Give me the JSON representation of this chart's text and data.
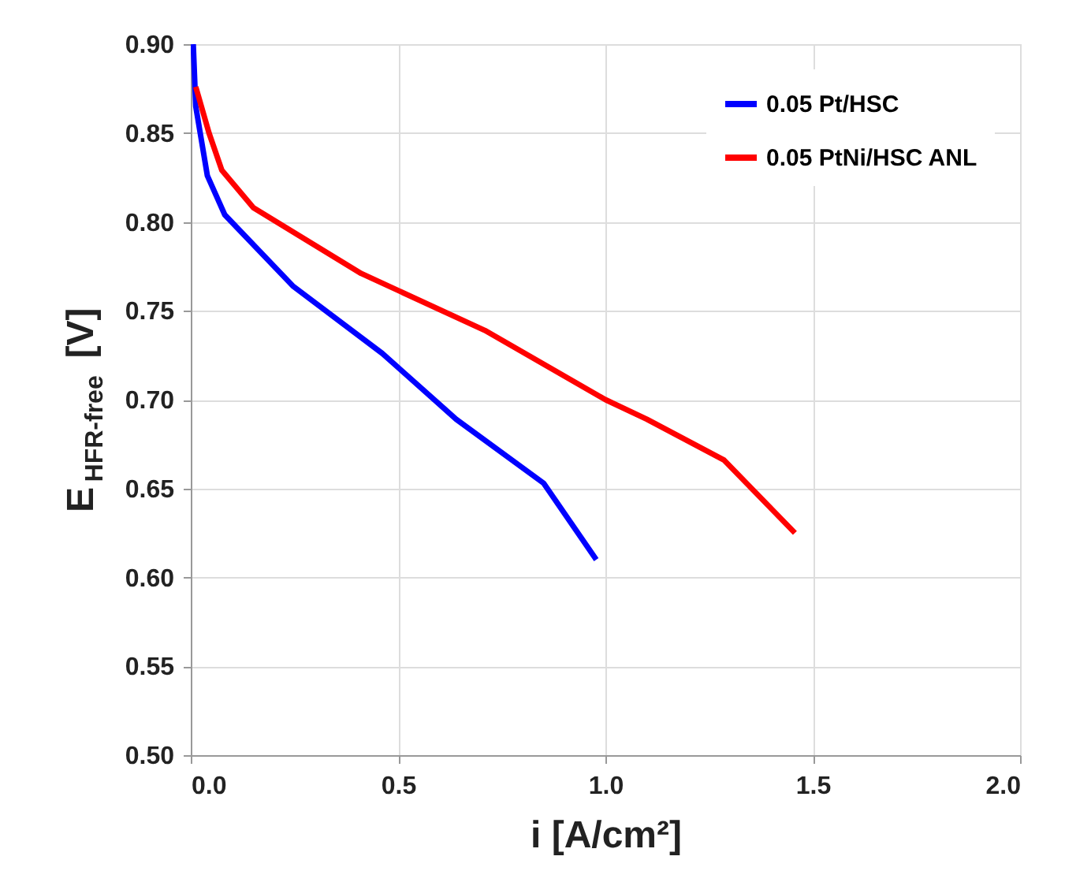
{
  "chart_data": {
    "type": "line",
    "xlabel": "i [A/cm²]",
    "ylabel": "E$_{HFR-free}$ [V]",
    "xlim": [
      0,
      2
    ],
    "xticks": [
      {
        "value": 0,
        "label": "0.0"
      },
      {
        "value": 0.5,
        "label": "0.5"
      },
      {
        "value": 1,
        "label": "1.0"
      },
      {
        "value": 1.5,
        "label": "1.5"
      },
      {
        "value": 2,
        "label": "2.0"
      }
    ],
    "ylim": [
      0.5,
      0.9
    ],
    "yticks": [
      {
        "value": 0.5,
        "label": "0.50"
      },
      {
        "value": 0.55,
        "label": "0.55"
      },
      {
        "value": 0.6,
        "label": "0.60"
      },
      {
        "value": 0.65,
        "label": "0.65"
      },
      {
        "value": 0.7,
        "label": "0.70"
      },
      {
        "value": 0.75,
        "label": "0.75"
      },
      {
        "value": 0.8,
        "label": "0.80"
      },
      {
        "value": 0.85,
        "label": "0.85"
      },
      {
        "value": 0.9,
        "label": "0.90"
      }
    ],
    "grid": true,
    "legend": "top right",
    "marker": "none",
    "line_style": "solid",
    "series": [
      {
        "name": "0.05 Pt/HSC",
        "color": "#0000ff",
        "x": [
          0.006,
          0.012,
          0.04,
          0.082,
          0.246,
          0.462,
          0.64,
          0.851,
          0.978
        ],
        "values": [
          0.9,
          0.865,
          0.826,
          0.804,
          0.764,
          0.726,
          0.689,
          0.653,
          0.61
        ]
      },
      {
        "name": "0.05 PtNi/HSC ANL",
        "color": "#ff0000",
        "x": [
          0.012,
          0.044,
          0.075,
          0.151,
          0.411,
          0.709,
          1.0,
          1.1,
          1.286,
          1.457
        ],
        "values": [
          0.876,
          0.85,
          0.829,
          0.808,
          0.771,
          0.739,
          0.7,
          0.689,
          0.666,
          0.625
        ]
      }
    ]
  }
}
